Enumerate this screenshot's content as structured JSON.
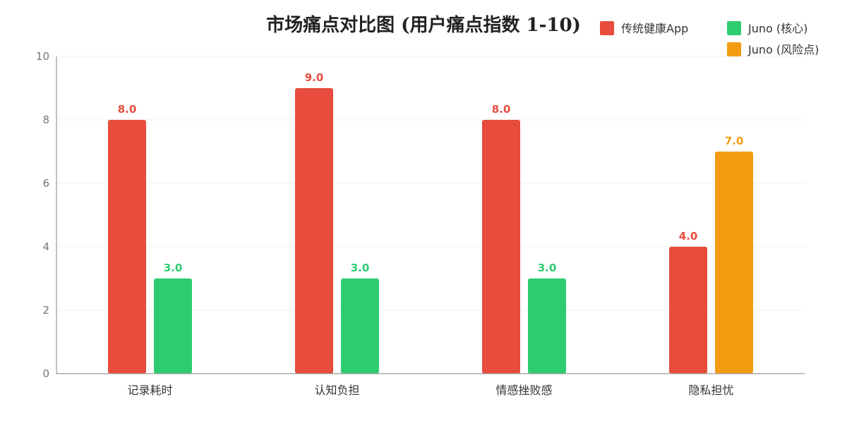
{
  "chart_data": {
    "type": "bar",
    "title": "市场痛点对比图 (用户痛点指数 1-10)",
    "xlabel": "",
    "ylabel": "",
    "ylim": [
      0,
      10
    ],
    "yticks": [
      0,
      2,
      4,
      6,
      8,
      10
    ],
    "grid": true,
    "legend_position": "top-right",
    "categories": [
      "记录耗时",
      "认知负担",
      "情感挫败感",
      "隐私担忧"
    ],
    "bars": [
      {
        "category": "记录耗时",
        "series": "传统健康App",
        "value": 8.0,
        "label": "8.0",
        "color": "#e74c3c"
      },
      {
        "category": "记录耗时",
        "series": "Juno (核心)",
        "value": 3.0,
        "label": "3.0",
        "color": "#2ecc71"
      },
      {
        "category": "认知负担",
        "series": "传统健康App",
        "value": 9.0,
        "label": "9.0",
        "color": "#e74c3c"
      },
      {
        "category": "认知负担",
        "series": "Juno (核心)",
        "value": 3.0,
        "label": "3.0",
        "color": "#2ecc71"
      },
      {
        "category": "情感挫败感",
        "series": "传统健康App",
        "value": 8.0,
        "label": "8.0",
        "color": "#e74c3c"
      },
      {
        "category": "情感挫败感",
        "series": "Juno (核心)",
        "value": 3.0,
        "label": "3.0",
        "color": "#2ecc71"
      },
      {
        "category": "隐私担忧",
        "series": "传统健康App",
        "value": 4.0,
        "label": "4.0",
        "color": "#e74c3c"
      },
      {
        "category": "隐私担忧",
        "series": "Juno (风险点)",
        "value": 7.0,
        "label": "7.0",
        "color": "#f39c12"
      }
    ],
    "legend": [
      {
        "name": "传统健康App",
        "color": "#e74c3c"
      },
      {
        "name": "Juno (核心)",
        "color": "#2ecc71"
      },
      {
        "name": "Juno (风险点)",
        "color": "#f39c12"
      }
    ]
  }
}
